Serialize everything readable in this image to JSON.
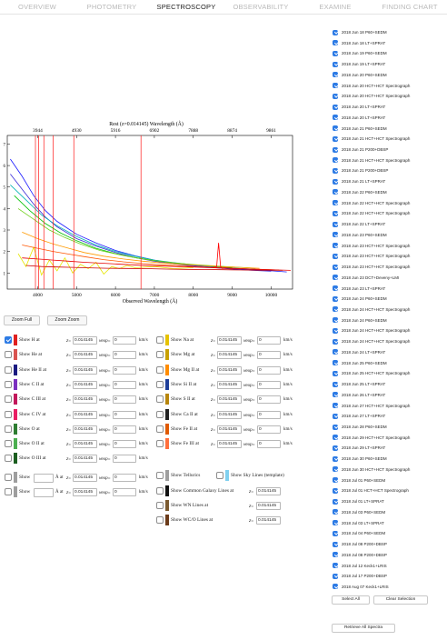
{
  "tabs": [
    "OVERVIEW",
    "PHOTOMETRY",
    "SPECTROSCOPY",
    "OBSERVABILITY",
    "EXAMINE",
    "FINDING CHART"
  ],
  "active_tab": 2,
  "chart_data": {
    "type": "line",
    "xlabel": "Observed Wavelength (Å)",
    "top_axis_label": "Rest (z=0.014145) Wavelength (Å)",
    "x_ticks": [
      4000,
      5000,
      6000,
      7000,
      8000,
      9000,
      10000
    ],
    "top_ticks": [
      3944,
      4930,
      5916,
      6902,
      7888,
      8874,
      9861
    ],
    "y_ticks": [
      1,
      2,
      3,
      4,
      5,
      6,
      7
    ],
    "xlim": [
      3220,
      10550
    ],
    "ylim": [
      0.25,
      7.4
    ],
    "redshift": 0.014145,
    "line_markers_rest": [
      6563,
      4861,
      4340,
      4102,
      3970,
      3889
    ],
    "series": [
      {
        "color": "#1a1aff",
        "x": [
          3300,
          3600,
          3900,
          4200,
          4500,
          5000,
          5500,
          6000,
          6500,
          7000,
          7500,
          8000,
          8500,
          9000,
          9500,
          10000,
          10400
        ],
        "y": [
          6.3,
          5.5,
          4.6,
          3.9,
          3.4,
          2.8,
          2.4,
          2.05,
          1.8,
          1.6,
          1.45,
          1.35,
          1.28,
          1.2,
          1.15,
          1.1,
          1.05
        ]
      },
      {
        "color": "#3a2bd8",
        "x": [
          3300,
          3600,
          3900,
          4200,
          4500,
          5000,
          5500,
          6000,
          6500,
          7000,
          7500,
          8000,
          8500,
          9000,
          9500,
          10000
        ],
        "y": [
          5.6,
          4.9,
          4.2,
          3.6,
          3.15,
          2.6,
          2.25,
          1.95,
          1.72,
          1.55,
          1.42,
          1.32,
          1.25,
          1.18,
          1.12,
          1.08
        ]
      },
      {
        "color": "#00b3b3",
        "x": [
          3300,
          3700,
          4100,
          4500,
          5000,
          5500,
          6000,
          6500,
          7000,
          7500,
          8000,
          8500,
          9000,
          9500
        ],
        "y": [
          5.1,
          4.4,
          3.7,
          3.2,
          2.7,
          2.3,
          2.0,
          1.78,
          1.6,
          1.48,
          1.38,
          1.3,
          1.23,
          1.18
        ]
      },
      {
        "color": "#00c000",
        "x": [
          3400,
          3800,
          4200,
          4600,
          5000,
          5500,
          6000,
          6500,
          7000,
          7500,
          8000,
          8500,
          9000
        ],
        "y": [
          4.6,
          3.9,
          3.3,
          2.85,
          2.5,
          2.15,
          1.9,
          1.72,
          1.58,
          1.47,
          1.38,
          1.31,
          1.25
        ]
      },
      {
        "color": "#6fcf1d",
        "x": [
          3500,
          3900,
          4300,
          4700,
          5100,
          5600,
          6100,
          6600,
          7100,
          7600,
          8100,
          8600,
          9100,
          9600
        ],
        "y": [
          4.0,
          3.5,
          3.0,
          2.65,
          2.35,
          2.05,
          1.85,
          1.68,
          1.55,
          1.45,
          1.38,
          1.32,
          1.27,
          1.22
        ]
      },
      {
        "color": "#e6e600",
        "x": [
          3500,
          3700,
          3900,
          4100,
          4300,
          4500,
          4700,
          4900,
          5100,
          5300,
          5500,
          5700,
          5900,
          6100,
          6300,
          6500,
          7000,
          7500,
          8000
        ],
        "y": [
          1.9,
          1.3,
          2.2,
          0.9,
          1.6,
          1.1,
          1.7,
          1.0,
          1.4,
          1.2,
          1.5,
          0.95,
          1.3,
          1.2,
          1.35,
          1.25,
          1.3,
          1.2,
          1.25
        ]
      },
      {
        "color": "#ff9900",
        "x": [
          3600,
          4000,
          4400,
          4800,
          5200,
          5700,
          6200,
          6700,
          7200,
          7700,
          8200,
          8700,
          9200,
          9700
        ],
        "y": [
          2.9,
          2.6,
          2.35,
          2.15,
          1.95,
          1.78,
          1.65,
          1.55,
          1.47,
          1.4,
          1.35,
          1.3,
          1.26,
          1.22
        ]
      },
      {
        "color": "#ff5500",
        "x": [
          3600,
          4000,
          4400,
          4800,
          5200,
          5700,
          6200,
          6700,
          7200,
          7700,
          8200,
          8700,
          9200,
          9700,
          10200
        ],
        "y": [
          2.3,
          2.15,
          2.0,
          1.88,
          1.76,
          1.62,
          1.52,
          1.44,
          1.38,
          1.32,
          1.28,
          1.24,
          1.2,
          1.17,
          1.14
        ]
      },
      {
        "color": "#e60000",
        "x": [
          3600,
          4000,
          4400,
          4800,
          5200,
          5700,
          6200,
          6700,
          7200,
          7700,
          8200,
          8700,
          9200,
          9700,
          10200,
          10500
        ],
        "y": [
          1.7,
          1.65,
          1.6,
          1.55,
          1.5,
          1.45,
          1.4,
          1.36,
          1.32,
          1.29,
          1.26,
          1.23,
          1.2,
          1.17,
          1.14,
          1.12
        ]
      },
      {
        "color": "#cc0000",
        "x": [
          3700,
          4100,
          4500,
          4900,
          5300,
          5800,
          6300,
          6800,
          7300,
          7800,
          8300,
          8800,
          9300,
          9800,
          10300
        ],
        "y": [
          1.35,
          1.3,
          1.28,
          1.26,
          1.24,
          1.22,
          1.21,
          1.2,
          1.18,
          1.17,
          1.16,
          1.15,
          1.14,
          1.13,
          1.12
        ]
      },
      {
        "color": "#ff0000",
        "x": [
          8500,
          8600,
          8650,
          8700,
          8750,
          8800,
          9000
        ],
        "y": [
          1.25,
          1.3,
          2.4,
          1.3,
          1.2,
          1.25,
          1.2
        ]
      }
    ]
  },
  "zoom": {
    "full": "Zoom Full",
    "in": "Zoom Zoom"
  },
  "left_lines": [
    {
      "name": "Show H at",
      "color": "#e02020",
      "checked": true
    },
    {
      "name": "Show He at",
      "color": "#d9534f",
      "checked": false
    },
    {
      "name": "Show He II at",
      "color": "#1a1a80",
      "checked": false
    },
    {
      "name": "Show C II at",
      "color": "#7b2fbf",
      "checked": false
    },
    {
      "name": "Show C III at",
      "color": "#c2185b",
      "checked": false
    },
    {
      "name": "Show C IV at",
      "color": "#e91e63",
      "checked": false
    },
    {
      "name": "Show O at",
      "color": "#2e7d32",
      "checked": false
    },
    {
      "name": "Show O II at",
      "color": "#4caf50",
      "checked": false
    },
    {
      "name": "Show O III at",
      "color": "#1b5e20",
      "checked": false
    }
  ],
  "right_lines": [
    {
      "name": "Show Na at",
      "color": "#e6c200"
    },
    {
      "name": "Show Mg at",
      "color": "#c8a000"
    },
    {
      "name": "Show Mg II at",
      "color": "#ff8c00"
    },
    {
      "name": "Show Si II at",
      "color": "#1f3f99"
    },
    {
      "name": "Show S II at",
      "color": "#b8860b"
    },
    {
      "name": "Show Ca II at",
      "color": "#222222"
    },
    {
      "name": "Show Fe II at",
      "color": "#e05a00"
    },
    {
      "name": "Show Fe III at",
      "color": "#ff6f3c"
    }
  ],
  "z_label": "z=",
  "z_value": "0.014145",
  "v_label": "vexp=",
  "v_value": "0",
  "kms": "km/s",
  "custom": {
    "show": "Show",
    "a_at": "Å at"
  },
  "extras": {
    "telluric": "Show Tellurics",
    "sky": "Show Sky Lines (template)",
    "galaxy": "Show Common Galaxy Lines at",
    "wn": "Show WN Lines at",
    "wco": "Show WC/O Lines at"
  },
  "spectra": [
    "2018 Jun 18 P60+SEDM",
    "2018 Jun 18 LT+SPRAT",
    "2018 Jun 19 P60+SEDM",
    "2018 Jun 19 LT+SPRAT",
    "2018 Jun 20 P60+SEDM",
    "2018 Jun 20 HCT+HCT Spectrograph",
    "2018 Jun 20 HCT+HCT Spectrograph",
    "2018 Jun 20 LT+SPRAT",
    "2018 Jun 20 LT+SPRAT",
    "2018 Jun 21 P60+SEDM",
    "2018 Jun 21 HCT+HCT Spectrograph",
    "2018 Jun 21 P200+DBSP",
    "2018 Jun 21 HCT+HCT Spectrograph",
    "2018 Jun 21 P200+DBSP",
    "2018 Jun 21 LT+SPRAT",
    "2018 Jun 22 P60+SEDM",
    "2018 Jun 22 HCT+HCT Spectrograph",
    "2018 Jun 22 HCT+HCT Spectrograph",
    "2018 Jun 22 LT+SPRAT",
    "2018 Jun 23 P60+SEDM",
    "2018 Jun 23 HCT+HCT Spectrograph",
    "2018 Jun 23 HCT+HCT Spectrograph",
    "2018 Jun 23 HCT+HCT Spectrograph",
    "2018 Jun 23 DCT+Deveny+LMI",
    "2018 Jun 23 LT+SPRAT",
    "2018 Jun 24 P60+SEDM",
    "2018 Jun 24 HCT+HCT Spectrograph",
    "2018 Jun 24 P60+SEDM",
    "2018 Jun 24 HCT+HCT Spectrograph",
    "2018 Jun 24 HCT+HCT Spectrograph",
    "2018 Jun 24 LT+SPRAT",
    "2018 Jun 25 P60+SEDM",
    "2018 Jun 25 HCT+HCT Spectrograph",
    "2018 Jun 25 LT+SPRAT",
    "2018 Jun 26 LT+SPRAT",
    "2018 Jun 27 HCT+HCT Spectrograph",
    "2018 Jun 27 LT+SPRAT",
    "2018 Jun 28 P60+SEDM",
    "2018 Jun 29 HCT+HCT Spectrograph",
    "2018 Jun 29 LT+SPRAT",
    "2018 Jun 30 P60+SEDM",
    "2018 Jun 30 HCT+HCT Spectrograph",
    "2018 Jul 01 P60+SEDM",
    "2018 Jul 01 HCT+HCT Spectrograph",
    "2018 Jul 01 LT+SPRAT",
    "2018 Jul 03 P60+SEDM",
    "2018 Jul 03 LT+SPRAT",
    "2018 Jul 04 P60+SEDM",
    "2018 Jul 08 P200+DBSP",
    "2018 Jul 08 P200+DBSP",
    "2018 Jul 12 Keck1+LRIS",
    "2018 Jul 17 P200+DBSP",
    "2018 Aug 07 Keck1+LRIS"
  ],
  "buttons": {
    "select_all": "Select All",
    "clear_selection": "Clear Selection",
    "retrieve": "Retrieve All Spectra"
  }
}
